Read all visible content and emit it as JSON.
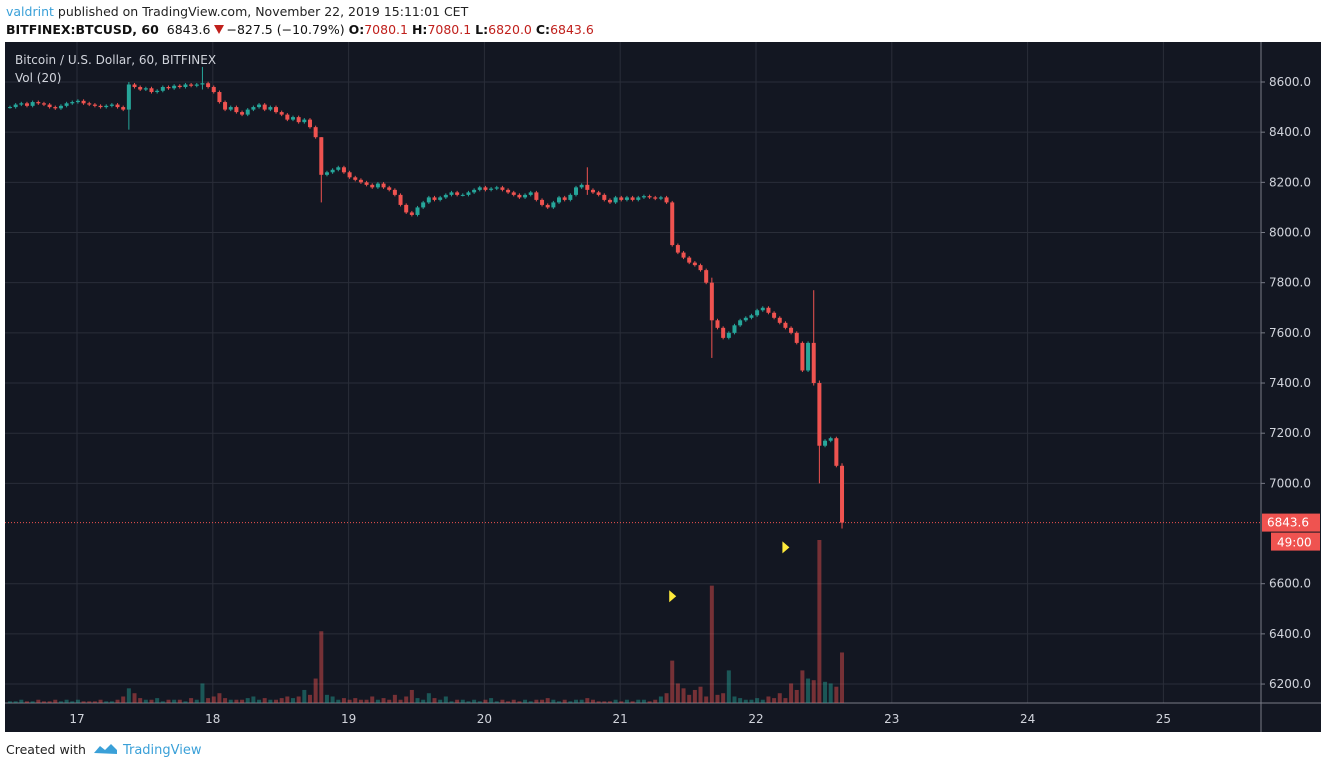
{
  "header": {
    "user": "valdrint",
    "published": "published on TradingView.com, November 22, 2019 15:11:01 CET"
  },
  "symbol": {
    "name": "BITFINEX:BTCUSD, 60",
    "last": "6843.6",
    "change": "−827.5 (−10.79%)",
    "o_label": "O:",
    "o": "7080.1",
    "h_label": "H:",
    "h": "7080.1",
    "l_label": "L:",
    "l": "6820.0",
    "c_label": "C:",
    "c": "6843.6"
  },
  "legend": {
    "title": "Bitcoin / U.S. Dollar, 60, BITFINEX",
    "volume": "Vol (20)"
  },
  "footer": {
    "created": "Created with",
    "brand": "TradingView"
  },
  "colors": {
    "up": "#26a69a",
    "down": "#ef5350",
    "bg": "#131722",
    "grid": "#2a2e39",
    "marker": "#ffeb3b"
  },
  "chart_data": {
    "type": "candlestick",
    "title": "Bitcoin / U.S. Dollar, 60, BITFINEX",
    "interval": "60",
    "start": "Nov 16 12:00",
    "ylim": [
      6120,
      8760
    ],
    "y_ticks": [
      "8600.0",
      "8400.0",
      "8200.0",
      "8000.0",
      "7800.0",
      "7600.0",
      "7400.0",
      "7200.0",
      "7000.0",
      "6600.0",
      "6400.0",
      "6200.0"
    ],
    "y_tick_values": [
      8600,
      8400,
      8200,
      8000,
      7800,
      7600,
      7400,
      7200,
      7000,
      6600,
      6400,
      6200
    ],
    "x_ticks": [
      "17",
      "18",
      "19",
      "20",
      "21",
      "22",
      "23",
      "24",
      "25"
    ],
    "last_price_label": "6843.6",
    "countdown_label": "49:00",
    "first_open": 8500,
    "closes": [
      8500,
      8510,
      8515,
      8505,
      8520,
      8515,
      8510,
      8500,
      8495,
      8505,
      8515,
      8520,
      8525,
      8515,
      8510,
      8505,
      8500,
      8505,
      8510,
      8500,
      8490,
      8590,
      8580,
      8570,
      8575,
      8560,
      8565,
      8580,
      8575,
      8585,
      8580,
      8590,
      8585,
      8590,
      8595,
      8580,
      8560,
      8520,
      8490,
      8500,
      8480,
      8470,
      8490,
      8500,
      8510,
      8490,
      8500,
      8480,
      8470,
      8450,
      8460,
      8440,
      8450,
      8420,
      8380,
      8230,
      8240,
      8250,
      8260,
      8240,
      8220,
      8210,
      8200,
      8190,
      8180,
      8195,
      8180,
      8170,
      8150,
      8110,
      8080,
      8070,
      8100,
      8120,
      8140,
      8130,
      8140,
      8150,
      8160,
      8150,
      8150,
      8160,
      8170,
      8180,
      8170,
      8175,
      8180,
      8170,
      8160,
      8150,
      8140,
      8150,
      8160,
      8130,
      8110,
      8100,
      8120,
      8140,
      8130,
      8150,
      8180,
      8190,
      8170,
      8160,
      8150,
      8130,
      8120,
      8140,
      8130,
      8140,
      8130,
      8140,
      8145,
      8140,
      8135,
      8140,
      8120,
      7950,
      7920,
      7900,
      7880,
      7870,
      7850,
      7800,
      7650,
      7620,
      7580,
      7600,
      7630,
      7650,
      7660,
      7670,
      7690,
      7700,
      7680,
      7660,
      7640,
      7620,
      7600,
      7560,
      7450,
      7560,
      7400,
      7150,
      7170,
      7180,
      7070,
      6843.6
    ],
    "wicks": {
      "21": [
        8600,
        8410
      ],
      "34": [
        8660,
        8570
      ],
      "55": [
        8380,
        8120
      ],
      "102": [
        8260,
        8150
      ],
      "124": [
        7820,
        7500
      ],
      "142": [
        7770,
        7390
      ],
      "143": [
        7410,
        7000
      ],
      "147": [
        7080.1,
        6820
      ]
    },
    "volume": [
      1,
      1,
      2,
      1,
      1,
      2,
      1,
      1,
      2,
      1,
      2,
      1,
      2,
      1,
      1,
      1,
      2,
      1,
      1,
      2,
      4,
      9,
      6,
      3,
      2,
      2,
      3,
      1,
      2,
      2,
      2,
      1,
      3,
      2,
      12,
      3,
      4,
      6,
      3,
      2,
      2,
      2,
      3,
      4,
      2,
      3,
      2,
      2,
      3,
      4,
      3,
      4,
      8,
      5,
      15,
      44,
      5,
      4,
      2,
      3,
      2,
      3,
      2,
      2,
      4,
      2,
      3,
      2,
      5,
      2,
      4,
      8,
      3,
      2,
      6,
      3,
      2,
      4,
      1,
      2,
      2,
      1,
      2,
      1,
      2,
      3,
      1,
      2,
      1,
      2,
      1,
      2,
      1,
      2,
      2,
      3,
      2,
      1,
      2,
      1,
      2,
      2,
      3,
      2,
      1,
      1,
      1,
      2,
      1,
      2,
      1,
      2,
      2,
      1,
      2,
      4,
      6,
      26,
      12,
      9,
      5,
      8,
      10,
      4,
      72,
      5,
      6,
      20,
      4,
      3,
      2,
      2,
      3,
      2,
      4,
      3,
      6,
      3,
      12,
      8,
      20,
      15,
      14,
      100,
      13,
      12,
      10,
      31
    ],
    "markers": [
      {
        "index": 117,
        "level": 6550
      },
      {
        "index": 137,
        "level": 6745
      }
    ]
  }
}
